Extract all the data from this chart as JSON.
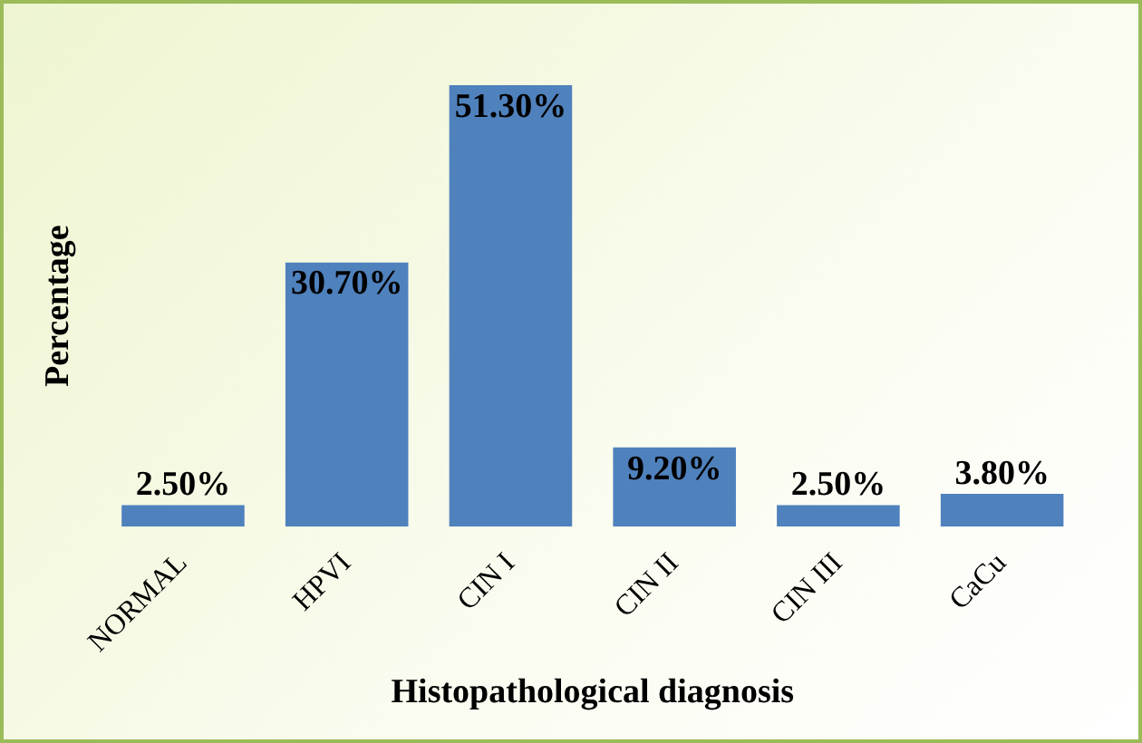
{
  "chart_data": {
    "type": "bar",
    "xlabel": "Histopathological diagnosis",
    "ylabel": "Percentage",
    "categories": [
      "NORMAL",
      "HPVI",
      "CIN I",
      "CIN II",
      "CIN III",
      "CaCu"
    ],
    "values": [
      2.5,
      30.7,
      51.3,
      9.2,
      2.5,
      3.8
    ],
    "color": "#4f81bd",
    "value_labels": [
      "2.50%",
      "30.70%",
      "51.30%",
      "9.20%",
      "2.50%",
      "3.80%"
    ]
  }
}
